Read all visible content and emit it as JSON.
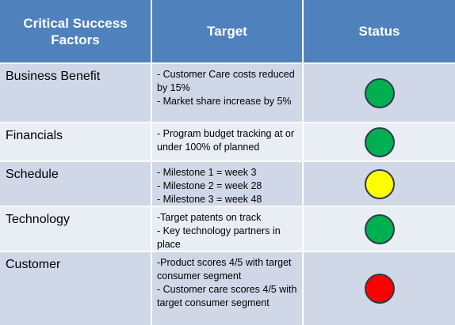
{
  "header": {
    "factors": "Critical Success Factors",
    "target": "Target",
    "status": "Status"
  },
  "rows": [
    {
      "factor": "Business Benefit",
      "targets": [
        "- Customer Care costs reduced by 15%",
        "- Market share increase by 5%"
      ],
      "status": "green",
      "color": "#00b050"
    },
    {
      "factor": "Financials",
      "targets": [
        "- Program budget tracking at or under 100% of planned"
      ],
      "status": "green",
      "color": "#00b050"
    },
    {
      "factor": "Schedule",
      "targets": [
        "- Milestone 1 = week 3",
        "- Milestone 2 = week 28",
        "- Milestone 3 = week 48"
      ],
      "status": "yellow",
      "color": "#ffff00"
    },
    {
      "factor": "Technology",
      "targets": [
        "-Target patents on track",
        "- Key technology partners in place"
      ],
      "status": "green",
      "color": "#00b050"
    },
    {
      "factor": "Customer",
      "targets": [
        "-Product scores 4/5 with target consumer segment",
        "- Customer care scores 4/5 with target consumer segment"
      ],
      "status": "red",
      "color": "#ff0000"
    }
  ],
  "colors": {
    "header_bg": "#4f81bd",
    "row_odd": "#d0d8e8",
    "row_even": "#e9edf4"
  }
}
